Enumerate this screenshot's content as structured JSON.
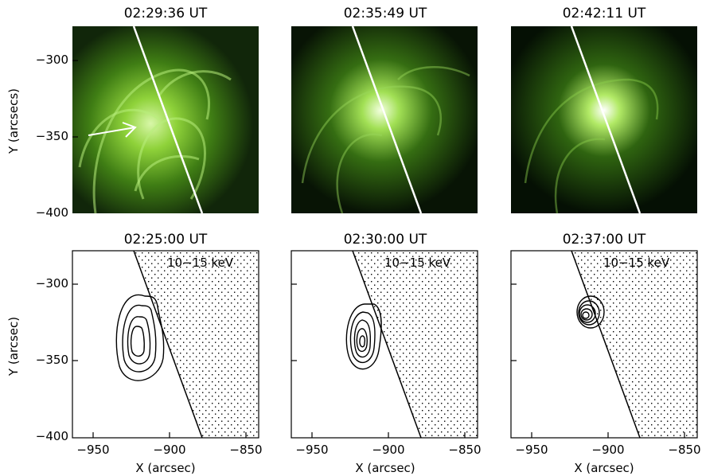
{
  "figure": {
    "top_row": {
      "titles": [
        "02:29:36 UT",
        "02:35:49 UT",
        "02:42:11 UT"
      ],
      "y_label": "Y (arcsecs)",
      "y_ticks": [
        "−300",
        "−350",
        "−400"
      ]
    },
    "bottom_row": {
      "titles": [
        "02:25:00 UT",
        "02:30:00 UT",
        "02:37:00 UT"
      ],
      "y_label": "Y (arcsec)",
      "y_ticks": [
        "−300",
        "−350",
        "−400"
      ],
      "x_label": "X (arcsec)",
      "x_ticks": [
        "−950",
        "−900",
        "−850"
      ],
      "energy_label": "10−15 keV"
    },
    "colors": {
      "euv_green": "#8fd23a",
      "euv_dark": "#0b1a05",
      "limb_line": "#ffffff"
    }
  }
}
